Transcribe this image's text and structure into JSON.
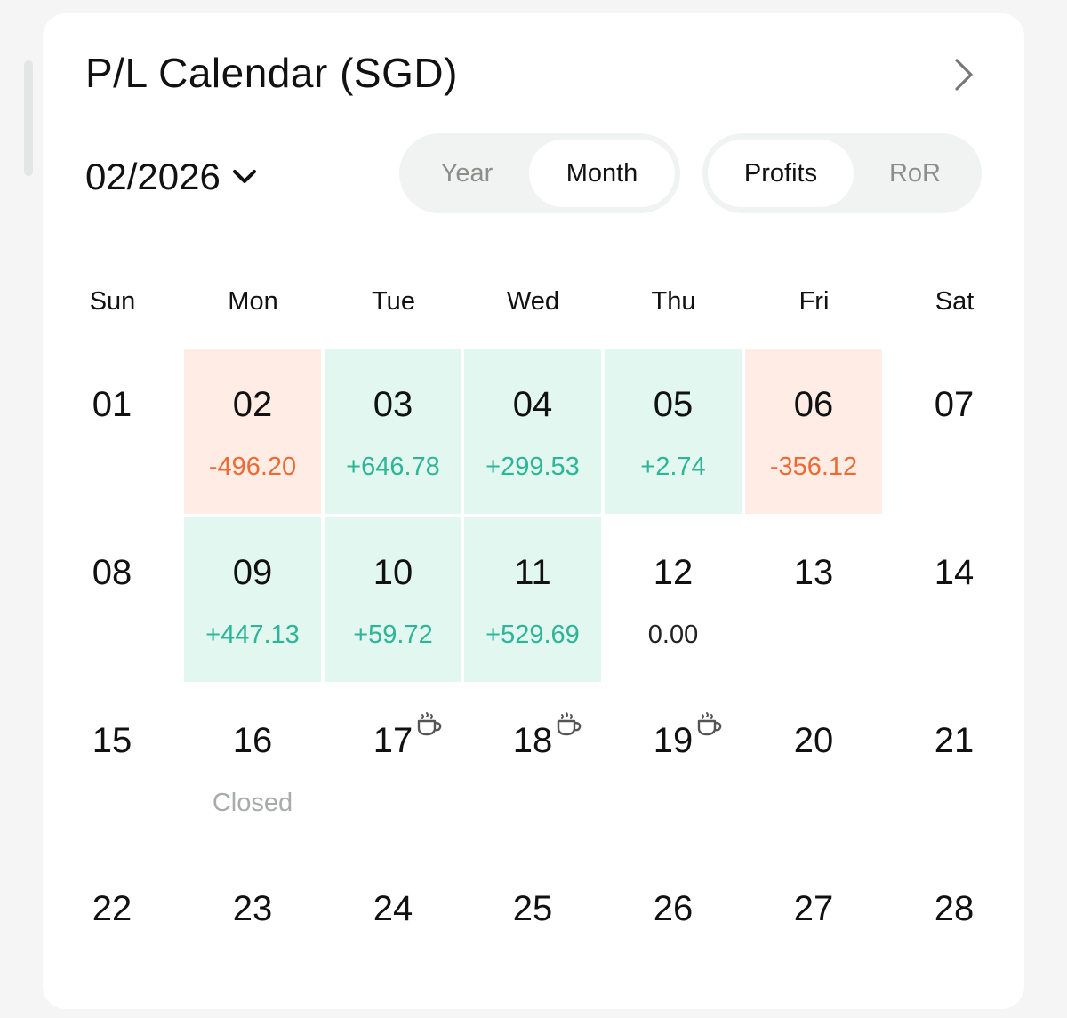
{
  "header": {
    "title": "P/L Calendar (SGD)"
  },
  "period": {
    "selected": "02/2026"
  },
  "range_toggle": {
    "options": [
      "Year",
      "Month"
    ],
    "active": "Month"
  },
  "metric_toggle": {
    "options": [
      "Profits",
      "RoR"
    ],
    "active": "Profits"
  },
  "weekdays": [
    "Sun",
    "Mon",
    "Tue",
    "Wed",
    "Thu",
    "Fri",
    "Sat"
  ],
  "days": [
    {
      "day": "01",
      "value": "",
      "status": "none"
    },
    {
      "day": "02",
      "value": "-496.20",
      "status": "neg"
    },
    {
      "day": "03",
      "value": "+646.78",
      "status": "pos"
    },
    {
      "day": "04",
      "value": "+299.53",
      "status": "pos"
    },
    {
      "day": "05",
      "value": "+2.74",
      "status": "pos"
    },
    {
      "day": "06",
      "value": "-356.12",
      "status": "neg"
    },
    {
      "day": "07",
      "value": "",
      "status": "none"
    },
    {
      "day": "08",
      "value": "",
      "status": "none"
    },
    {
      "day": "09",
      "value": "+447.13",
      "status": "pos"
    },
    {
      "day": "10",
      "value": "+59.72",
      "status": "pos"
    },
    {
      "day": "11",
      "value": "+529.69",
      "status": "pos"
    },
    {
      "day": "12",
      "value": "0.00",
      "status": "zero"
    },
    {
      "day": "13",
      "value": "",
      "status": "none"
    },
    {
      "day": "14",
      "value": "",
      "status": "none"
    },
    {
      "day": "15",
      "value": "",
      "status": "none"
    },
    {
      "day": "16",
      "value": "Closed",
      "status": "closed"
    },
    {
      "day": "17",
      "value": "",
      "status": "none",
      "holiday_icon": "coffee-cup-icon"
    },
    {
      "day": "18",
      "value": "",
      "status": "none",
      "holiday_icon": "coffee-cup-icon"
    },
    {
      "day": "19",
      "value": "",
      "status": "none",
      "holiday_icon": "coffee-cup-icon"
    },
    {
      "day": "20",
      "value": "",
      "status": "none"
    },
    {
      "day": "21",
      "value": "",
      "status": "none"
    },
    {
      "day": "22",
      "value": "",
      "status": "none"
    },
    {
      "day": "23",
      "value": "",
      "status": "none"
    },
    {
      "day": "24",
      "value": "",
      "status": "none"
    },
    {
      "day": "25",
      "value": "",
      "status": "none"
    },
    {
      "day": "26",
      "value": "",
      "status": "none"
    },
    {
      "day": "27",
      "value": "",
      "status": "none"
    },
    {
      "day": "28",
      "value": "",
      "status": "none"
    }
  ],
  "colors": {
    "positive_text": "#2cb596",
    "positive_bg": "#e3f7f1",
    "negative_text": "#ee6a33",
    "negative_bg": "#feece5"
  }
}
